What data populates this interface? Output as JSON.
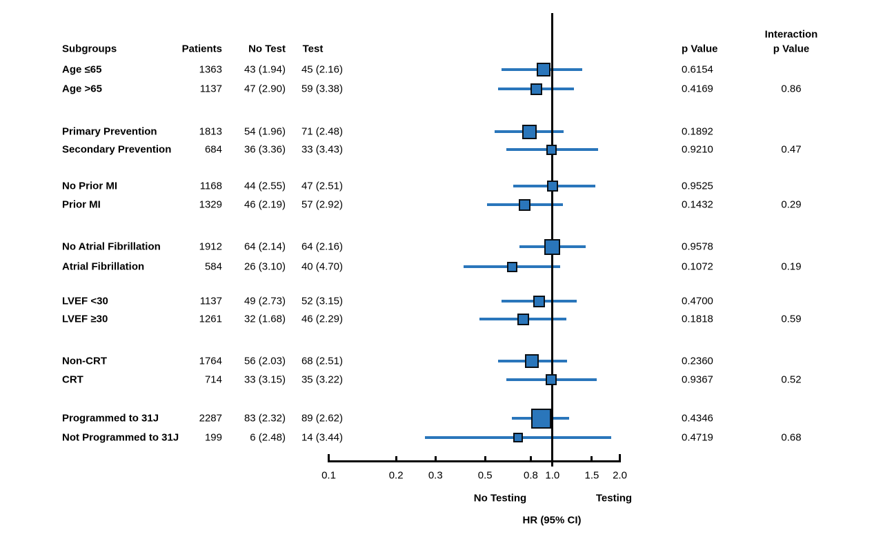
{
  "header": {
    "subgroups": "Subgroups",
    "patients": "Patients",
    "no_test": "No Test",
    "test": "Test",
    "p_value": "p Value",
    "interaction_line1": "Interaction",
    "interaction_line2": "p Value"
  },
  "footer": {
    "left_direction_label": "No Testing",
    "right_direction_label": "Testing",
    "axis_title": "HR (95% CI)"
  },
  "colors": {
    "marker_fill": "#2a76bb",
    "marker_border": "#0a0f14",
    "ci_line": "#2a76bb",
    "reference_line": "#000000",
    "axis_line": "#000000",
    "frame_line": "#e41e26",
    "text": "#000000"
  },
  "chart_data": {
    "type": "forest",
    "x_scale": "log",
    "x_range": [
      0.1,
      2.0
    ],
    "tick_values": [
      0.1,
      0.2,
      0.3,
      0.5,
      0.8,
      1.0,
      1.5,
      2.0
    ],
    "tick_labels": [
      "0.1",
      "0.2",
      "0.3",
      "0.5",
      "0.8",
      "1.0",
      "1.5",
      "2.0"
    ],
    "reference_value": 1.0,
    "xlabel": "HR (95% CI)",
    "left_direction_label": "No Testing",
    "right_direction_label": "Testing",
    "rows": [
      {
        "label": "Age ≤65",
        "patients": "1363",
        "no_test": "43 (1.94)",
        "test": "45 (2.16)",
        "p_value": "0.6154",
        "interaction_p": null,
        "hr": 0.91,
        "ci_low": 0.59,
        "ci_high": 1.36,
        "marker_size": 20
      },
      {
        "label": "Age >65",
        "patients": "1137",
        "no_test": "47 (2.90)",
        "test": "59 (3.38)",
        "p_value": "0.4169",
        "interaction_p": "0.86",
        "hr": 0.85,
        "ci_low": 0.57,
        "ci_high": 1.25,
        "marker_size": 17
      },
      {
        "label": "Primary Prevention",
        "patients": "1813",
        "no_test": "54 (1.96)",
        "test": "71 (2.48)",
        "p_value": "0.1892",
        "interaction_p": null,
        "hr": 0.79,
        "ci_low": 0.55,
        "ci_high": 1.12,
        "marker_size": 21
      },
      {
        "label": "Secondary Prevention",
        "patients": "684",
        "no_test": "36 (3.36)",
        "test": "33 (3.43)",
        "p_value": "0.9210",
        "interaction_p": "0.47",
        "hr": 0.99,
        "ci_low": 0.62,
        "ci_high": 1.6,
        "marker_size": 15
      },
      {
        "label": "No Prior MI",
        "patients": "1168",
        "no_test": "44 (2.55)",
        "test": "47 (2.51)",
        "p_value": "0.9525",
        "interaction_p": null,
        "hr": 1.0,
        "ci_low": 0.67,
        "ci_high": 1.55,
        "marker_size": 16
      },
      {
        "label": "Prior MI",
        "patients": "1329",
        "no_test": "46 (2.19)",
        "test": "57 (2.92)",
        "p_value": "0.1432",
        "interaction_p": "0.29",
        "hr": 0.75,
        "ci_low": 0.51,
        "ci_high": 1.11,
        "marker_size": 17
      },
      {
        "label": "No Atrial Fibrillation",
        "patients": "1912",
        "no_test": "64 (2.14)",
        "test": "64 (2.16)",
        "p_value": "0.9578",
        "interaction_p": null,
        "hr": 1.0,
        "ci_low": 0.71,
        "ci_high": 1.41,
        "marker_size": 23
      },
      {
        "label": "Atrial Fibrillation",
        "patients": "584",
        "no_test": "26 (3.10)",
        "test": "40 (4.70)",
        "p_value": "0.1072",
        "interaction_p": "0.19",
        "hr": 0.66,
        "ci_low": 0.4,
        "ci_high": 1.08,
        "marker_size": 15
      },
      {
        "label": "LVEF <30",
        "patients": "1137",
        "no_test": "49 (2.73)",
        "test": "52 (3.15)",
        "p_value": "0.4700",
        "interaction_p": null,
        "hr": 0.87,
        "ci_low": 0.59,
        "ci_high": 1.28,
        "marker_size": 17
      },
      {
        "label": "LVEF ≥30",
        "patients": "1261",
        "no_test": "32 (1.68)",
        "test": "46 (2.29)",
        "p_value": "0.1818",
        "interaction_p": "0.59",
        "hr": 0.74,
        "ci_low": 0.47,
        "ci_high": 1.15,
        "marker_size": 17
      },
      {
        "label": "Non-CRT",
        "patients": "1764",
        "no_test": "56 (2.03)",
        "test": "68 (2.51)",
        "p_value": "0.2360",
        "interaction_p": null,
        "hr": 0.81,
        "ci_low": 0.57,
        "ci_high": 1.16,
        "marker_size": 20
      },
      {
        "label": "CRT",
        "patients": "714",
        "no_test": "33 (3.15)",
        "test": "35 (3.22)",
        "p_value": "0.9367",
        "interaction_p": "0.52",
        "hr": 0.99,
        "ci_low": 0.62,
        "ci_high": 1.58,
        "marker_size": 16
      },
      {
        "label": "Programmed to 31J",
        "patients": "2287",
        "no_test": "83 (2.32)",
        "test": "89 (2.62)",
        "p_value": "0.4346",
        "interaction_p": null,
        "hr": 0.89,
        "ci_low": 0.66,
        "ci_high": 1.19,
        "marker_size": 29
      },
      {
        "label": "Not Programmed to 31J",
        "patients": "199",
        "no_test": "6 (2.48)",
        "test": "14 (3.44)",
        "p_value": "0.4719",
        "interaction_p": "0.68",
        "hr": 0.7,
        "ci_low": 0.27,
        "ci_high": 1.83,
        "marker_size": 14
      }
    ]
  }
}
